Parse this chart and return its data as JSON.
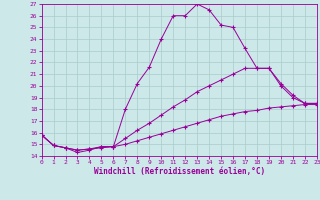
{
  "xlabel": "Windchill (Refroidissement éolien,°C)",
  "bg_color": "#cce8e8",
  "line_color": "#990099",
  "grid_color": "#aacccc",
  "xlim": [
    0,
    23
  ],
  "ylim": [
    14,
    27
  ],
  "yticks": [
    14,
    15,
    16,
    17,
    18,
    19,
    20,
    21,
    22,
    23,
    24,
    25,
    26,
    27
  ],
  "xticks": [
    0,
    1,
    2,
    3,
    4,
    5,
    6,
    7,
    8,
    9,
    10,
    11,
    12,
    13,
    14,
    15,
    16,
    17,
    18,
    19,
    20,
    21,
    22,
    23
  ],
  "series": [
    {
      "x": [
        0,
        1,
        2,
        3,
        4,
        5,
        6,
        7,
        8,
        9,
        10,
        11,
        12,
        13,
        14,
        15,
        16,
        17,
        18,
        19,
        20,
        21,
        22,
        23
      ],
      "y": [
        15.8,
        14.9,
        14.7,
        14.3,
        14.5,
        14.8,
        14.8,
        18.0,
        20.2,
        21.6,
        24.0,
        26.0,
        26.0,
        27.0,
        26.5,
        25.2,
        25.0,
        23.2,
        21.5,
        21.5,
        20.0,
        19.0,
        18.5,
        18.5
      ]
    },
    {
      "x": [
        0,
        1,
        2,
        3,
        4,
        5,
        6,
        7,
        8,
        9,
        10,
        11,
        12,
        13,
        14,
        15,
        16,
        17,
        18,
        19,
        20,
        21,
        22,
        23
      ],
      "y": [
        15.8,
        14.9,
        14.7,
        14.5,
        14.6,
        14.8,
        14.8,
        15.5,
        16.2,
        16.8,
        17.5,
        18.2,
        18.8,
        19.5,
        20.0,
        20.5,
        21.0,
        21.5,
        21.5,
        21.5,
        20.2,
        19.2,
        18.5,
        18.5
      ]
    },
    {
      "x": [
        0,
        1,
        2,
        3,
        4,
        5,
        6,
        7,
        8,
        9,
        10,
        11,
        12,
        13,
        14,
        15,
        16,
        17,
        18,
        19,
        20,
        21,
        22,
        23
      ],
      "y": [
        15.8,
        14.9,
        14.7,
        14.5,
        14.6,
        14.7,
        14.8,
        15.0,
        15.3,
        15.6,
        15.9,
        16.2,
        16.5,
        16.8,
        17.1,
        17.4,
        17.6,
        17.8,
        17.9,
        18.1,
        18.2,
        18.3,
        18.4,
        18.4
      ]
    }
  ]
}
